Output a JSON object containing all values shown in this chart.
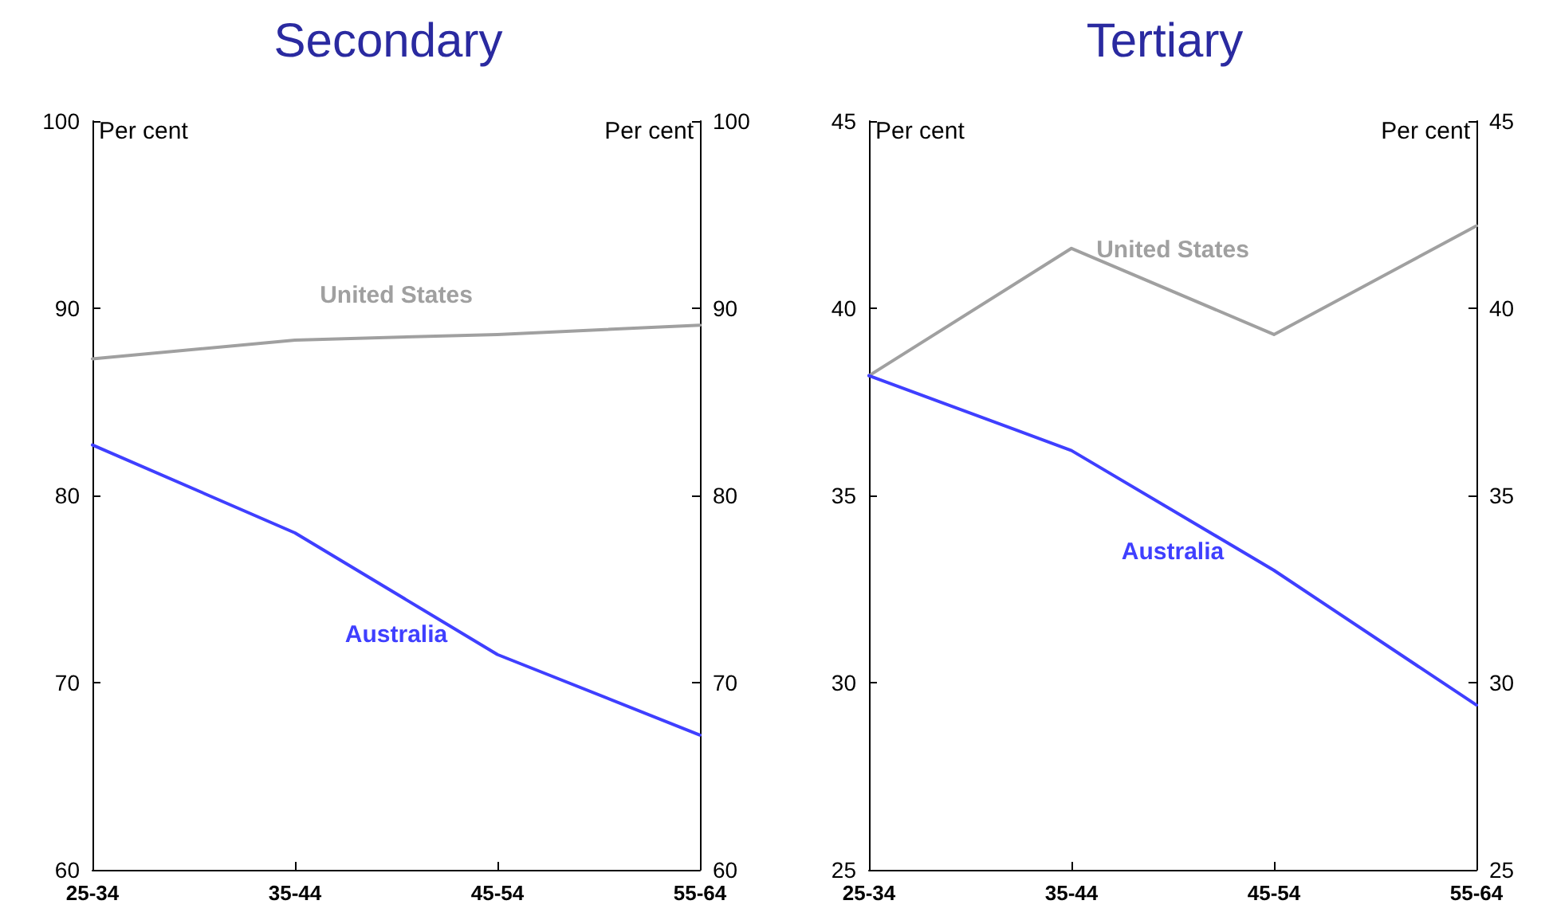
{
  "chart_data": [
    {
      "type": "line",
      "title": "Secondary",
      "ylabel": "Per cent",
      "y2label": "Per cent",
      "categories": [
        "25-34",
        "35-44",
        "45-54",
        "55-64"
      ],
      "series": [
        {
          "name": "United States",
          "color": "#a0a0a0",
          "values": [
            87.3,
            88.3,
            88.6,
            89.1
          ]
        },
        {
          "name": "Australia",
          "color": "#3f3fff",
          "values": [
            82.7,
            78.0,
            71.5,
            67.2
          ]
        }
      ],
      "ylim": [
        60,
        100
      ],
      "yticks": [
        60,
        70,
        80,
        90,
        100
      ],
      "y2lim": [
        60,
        100
      ],
      "y2ticks": [
        60,
        70,
        80,
        90,
        100
      ],
      "grid": false,
      "legend": false,
      "marker": "none",
      "line_style": "solid"
    },
    {
      "type": "line",
      "title": "Tertiary",
      "ylabel": "Per cent",
      "y2label": "Per cent",
      "categories": [
        "25-34",
        "35-44",
        "45-54",
        "55-64"
      ],
      "series": [
        {
          "name": "United States",
          "color": "#a0a0a0",
          "values": [
            38.2,
            41.6,
            39.3,
            42.2
          ]
        },
        {
          "name": "Australia",
          "color": "#3f3fff",
          "values": [
            38.2,
            36.2,
            33.0,
            29.4
          ]
        }
      ],
      "ylim": [
        25,
        45
      ],
      "yticks": [
        25,
        30,
        35,
        40,
        45
      ],
      "y2lim": [
        25,
        45
      ],
      "y2ticks": [
        25,
        30,
        35,
        40,
        45
      ],
      "grid": false,
      "legend": false,
      "marker": "none",
      "line_style": "solid"
    }
  ]
}
